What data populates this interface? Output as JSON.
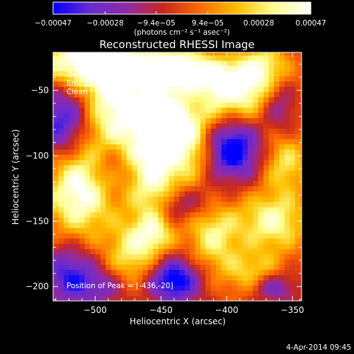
{
  "chart_data": {
    "type": "heatmap",
    "title": "Reconstructed RHESSI Image",
    "xlabel": "Heliocentric X (arcsec)",
    "ylabel": "Heliocentric Y (arcsec)",
    "xlim": [
      -532,
      -343
    ],
    "ylim": [
      -211,
      -21
    ],
    "xticks": [
      -500,
      -450,
      -400,
      -350
    ],
    "yticks": [
      -200,
      -150,
      -100,
      -50
    ],
    "colorbar": {
      "ticks": [
        -0.00047,
        -0.00028,
        -9.4e-05,
        9.4e-05,
        0.00028,
        0.00047
      ],
      "tick_labels": [
        "−0.00047",
        "−0.00028",
        "−9.4e−05",
        "9.4e−05",
        "0.00028",
        "0.00047"
      ],
      "unit": "(photons cm⁻² s⁻¹ asec⁻²)",
      "range": [
        -0.00047,
        0.00047
      ]
    },
    "annotations": [
      "3-Apr-2014 17:51:28.000 to 17:52:56.000",
      "Detectors: 3F 5F 6F 7F 8F 9F, Att 0",
      "Energy Range: 25.0 - 50.0 keV",
      "Clean    Total counts: 2.57E+03"
    ],
    "peak_label": "Position of Peak = [-436,-20]",
    "peak_position": [
      -436,
      -20
    ],
    "timestamp": "4-Apr-2014 09:45",
    "colormap": [
      "#0000ff",
      "#6a2bd0",
      "#8f2aa8",
      "#c8281c",
      "#ff6a00",
      "#ffbf00",
      "#ffff90",
      "#ffffff"
    ],
    "background": "#000000"
  }
}
